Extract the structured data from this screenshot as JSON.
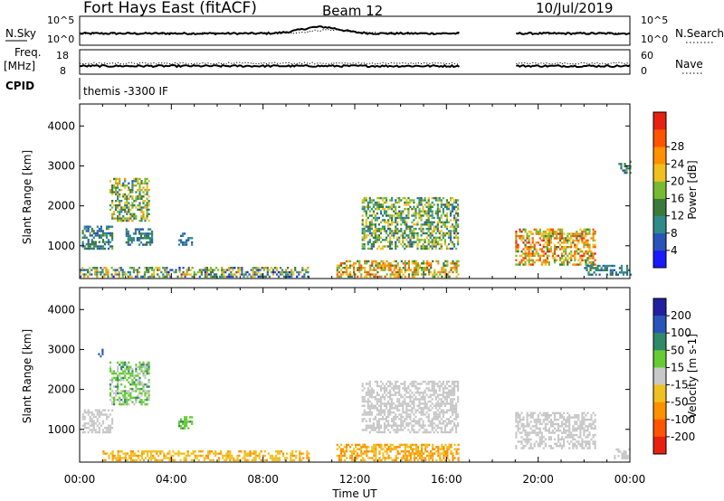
{
  "header": {
    "title": "Fort Hays East (fitACF)",
    "beam": "Beam 12",
    "date": "10/Jul/2019"
  },
  "top_panels": {
    "nsky": {
      "left_label": "N.Sky",
      "right_label": "N.Search",
      "left_ticks": [
        "10^5",
        "10^0"
      ],
      "right_ticks": [
        "10^5",
        "10^0"
      ]
    },
    "freq": {
      "left_label_1": "Freq.",
      "left_label_2": "[MHz]",
      "right_label": "Nave",
      "left_ticks": [
        "18",
        "8"
      ],
      "right_ticks": [
        "60",
        "0"
      ]
    },
    "cpid": {
      "label": "CPID",
      "text": "themis -3300 IF"
    }
  },
  "x_axis": {
    "label": "Time UT",
    "ticks": [
      "00:00",
      "04:00",
      "08:00",
      "12:00",
      "16:00",
      "20:00",
      "00:00"
    ]
  },
  "colors": {
    "power": [
      "#1a1aff",
      "#2a55b8",
      "#2f8a8a",
      "#3a7a3a",
      "#77bb33",
      "#f0c020",
      "#ff9000",
      "#ff5500",
      "#e82010"
    ],
    "velocity": [
      "#2020a0",
      "#2a55b8",
      "#2f8a6a",
      "#66cc33",
      "#c8c8c8",
      "#f0c020",
      "#ff9000",
      "#ff5500",
      "#e82010"
    ]
  },
  "chart_data": [
    {
      "type": "heatmap",
      "name": "power",
      "ylabel": "Slant Range [km]",
      "xlabel": "Time UT",
      "xlim_hours": [
        0,
        24
      ],
      "ylim": [
        180,
        4550
      ],
      "yticks": [
        "1000",
        "2000",
        "3000",
        "4000"
      ],
      "colorbar": {
        "label": "Power [dB]",
        "ticks": [
          "4",
          "8",
          "12",
          "16",
          "20",
          "24",
          "28"
        ],
        "range": [
          0,
          30
        ]
      },
      "regions": [
        {
          "t": [
            0.1,
            1.4
          ],
          "r": [
            900,
            1500
          ],
          "v": [
            4,
            14
          ]
        },
        {
          "t": [
            1.3,
            3.0
          ],
          "r": [
            1600,
            2700
          ],
          "v": [
            6,
            22
          ]
        },
        {
          "t": [
            2.0,
            3.2
          ],
          "r": [
            1000,
            1400
          ],
          "v": [
            4,
            12
          ]
        },
        {
          "t": [
            4.3,
            4.9
          ],
          "r": [
            1000,
            1300
          ],
          "v": [
            4,
            10
          ]
        },
        {
          "t": [
            0.0,
            10.0
          ],
          "r": [
            200,
            450
          ],
          "v": [
            2,
            22
          ]
        },
        {
          "t": [
            11.2,
            16.5
          ],
          "r": [
            200,
            600
          ],
          "v": [
            10,
            26
          ]
        },
        {
          "t": [
            12.3,
            16.5
          ],
          "r": [
            900,
            2200
          ],
          "v": [
            6,
            20
          ]
        },
        {
          "t": [
            19.0,
            22.5
          ],
          "r": [
            500,
            1400
          ],
          "v": [
            12,
            28
          ]
        },
        {
          "t": [
            22.0,
            24.0
          ],
          "r": [
            250,
            500
          ],
          "v": [
            4,
            12
          ]
        },
        {
          "t": [
            23.5,
            24.0
          ],
          "r": [
            2800,
            3100
          ],
          "v": [
            6,
            14
          ]
        }
      ]
    },
    {
      "type": "heatmap",
      "name": "velocity",
      "ylabel": "Slant Range [km]",
      "xlabel": "Time UT",
      "xlim_hours": [
        0,
        24
      ],
      "ylim": [
        180,
        4550
      ],
      "yticks": [
        "1000",
        "2000",
        "3000",
        "4000"
      ],
      "colorbar": {
        "label": "Velocity [m s-1]",
        "ticks": [
          "200",
          "100",
          "50",
          "15",
          "-15",
          "-50",
          "-100",
          "-200"
        ],
        "range": [
          -250,
          250
        ]
      },
      "regions": [
        {
          "t": [
            0.1,
            1.4
          ],
          "r": [
            900,
            1500
          ],
          "v": [
            -10,
            10
          ]
        },
        {
          "t": [
            1.3,
            3.0
          ],
          "r": [
            1600,
            2700
          ],
          "v": [
            -10,
            60
          ]
        },
        {
          "t": [
            4.3,
            4.9
          ],
          "r": [
            1000,
            1300
          ],
          "v": [
            20,
            60
          ]
        },
        {
          "t": [
            1.0,
            10.0
          ],
          "r": [
            200,
            450
          ],
          "v": [
            -60,
            -15
          ]
        },
        {
          "t": [
            11.2,
            16.5
          ],
          "r": [
            200,
            600
          ],
          "v": [
            -80,
            -20
          ]
        },
        {
          "t": [
            12.3,
            16.5
          ],
          "r": [
            900,
            2200
          ],
          "v": [
            -12,
            12
          ]
        },
        {
          "t": [
            19.0,
            22.5
          ],
          "r": [
            500,
            1400
          ],
          "v": [
            -12,
            12
          ]
        },
        {
          "t": [
            23.3,
            24.0
          ],
          "r": [
            250,
            500
          ],
          "v": [
            -12,
            12
          ]
        },
        {
          "t": [
            0.8,
            1.0
          ],
          "r": [
            2800,
            3000
          ],
          "v": [
            80,
            150
          ]
        }
      ]
    }
  ]
}
